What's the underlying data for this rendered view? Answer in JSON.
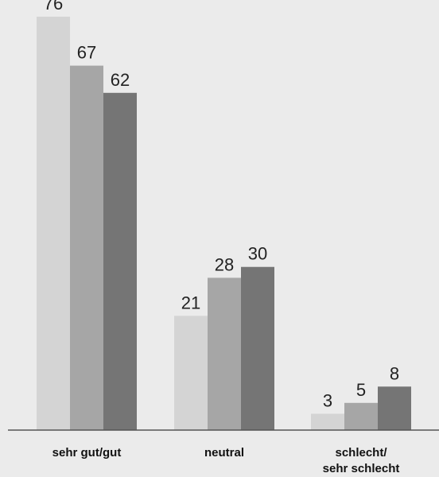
{
  "chart_data": {
    "type": "bar",
    "categories": [
      [
        "sehr gut/gut"
      ],
      [
        "neutral"
      ],
      [
        "schlecht/",
        "sehr schlecht"
      ]
    ],
    "series": [
      {
        "values": [
          76,
          21,
          3
        ],
        "color": "#d4d4d4"
      },
      {
        "values": [
          67,
          28,
          5
        ],
        "color": "#a6a6a6"
      },
      {
        "values": [
          62,
          30,
          8
        ],
        "color": "#757575"
      }
    ],
    "ylim": [
      0,
      76
    ],
    "grid": false,
    "legend": "none",
    "axis_color": "#555555",
    "background": "#ebebeb"
  }
}
